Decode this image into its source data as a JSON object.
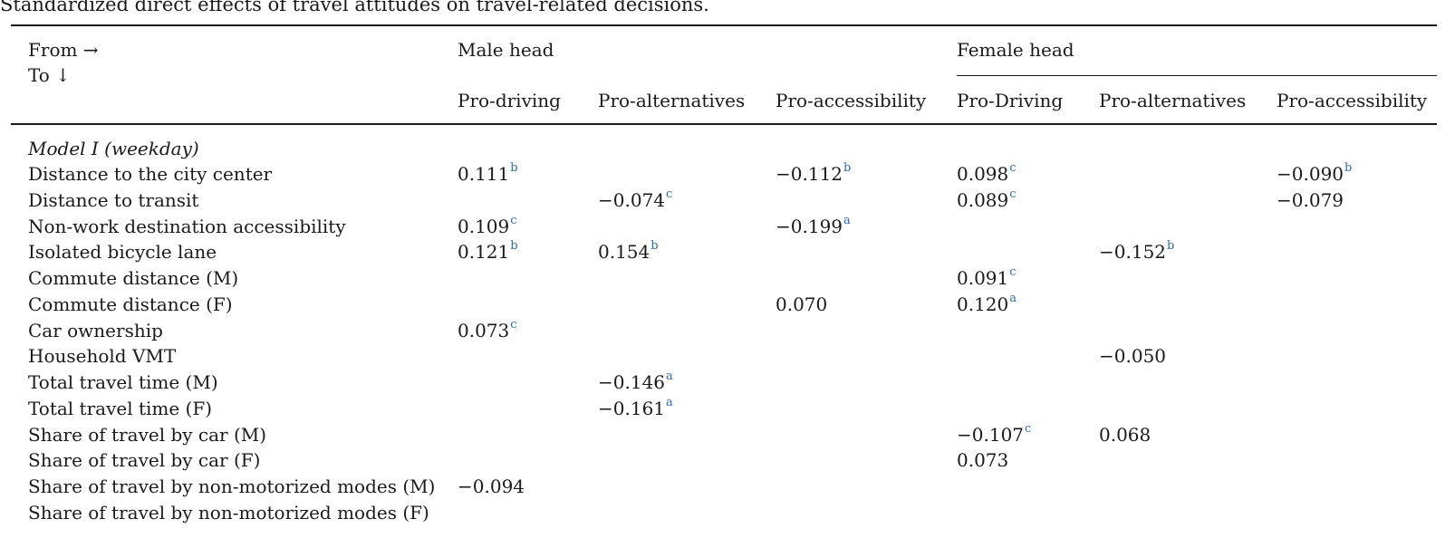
{
  "caption": "Standardized direct effects of travel attitudes on travel-related decisions.",
  "header": {
    "from": "From →",
    "to": "To ↓",
    "group_male": "Male head",
    "group_female": "Female head",
    "columns": [
      "Pro-driving",
      "Pro-alternatives",
      "Pro-accessibility",
      "Pro-Driving",
      "Pro-alternatives",
      "Pro-accessibility"
    ]
  },
  "section": "Model I (weekday)",
  "rows": [
    {
      "label": "Distance to the city center",
      "cells": [
        {
          "v": "0.111",
          "s": "b"
        },
        {
          "v": "",
          "s": ""
        },
        {
          "v": "−0.112",
          "s": "b"
        },
        {
          "v": "0.098",
          "s": "c"
        },
        {
          "v": "",
          "s": ""
        },
        {
          "v": "−0.090",
          "s": "b"
        }
      ]
    },
    {
      "label": "Distance to transit",
      "cells": [
        {
          "v": "",
          "s": ""
        },
        {
          "v": "−0.074",
          "s": "c"
        },
        {
          "v": "",
          "s": ""
        },
        {
          "v": "0.089",
          "s": "c"
        },
        {
          "v": "",
          "s": ""
        },
        {
          "v": "−0.079",
          "s": ""
        }
      ]
    },
    {
      "label": "Non-work destination accessibility",
      "cells": [
        {
          "v": "0.109",
          "s": "c"
        },
        {
          "v": "",
          "s": ""
        },
        {
          "v": "−0.199",
          "s": "a"
        },
        {
          "v": "",
          "s": ""
        },
        {
          "v": "",
          "s": ""
        },
        {
          "v": "",
          "s": ""
        }
      ]
    },
    {
      "label": "Isolated bicycle lane",
      "cells": [
        {
          "v": "0.121",
          "s": "b"
        },
        {
          "v": "0.154",
          "s": "b"
        },
        {
          "v": "",
          "s": ""
        },
        {
          "v": "",
          "s": ""
        },
        {
          "v": "−0.152",
          "s": "b"
        },
        {
          "v": "",
          "s": ""
        }
      ]
    },
    {
      "label": "Commute distance (M)",
      "cells": [
        {
          "v": "",
          "s": ""
        },
        {
          "v": "",
          "s": ""
        },
        {
          "v": "",
          "s": ""
        },
        {
          "v": "0.091",
          "s": "c"
        },
        {
          "v": "",
          "s": ""
        },
        {
          "v": "",
          "s": ""
        }
      ]
    },
    {
      "label": "Commute distance (F)",
      "cells": [
        {
          "v": "",
          "s": ""
        },
        {
          "v": "",
          "s": ""
        },
        {
          "v": "0.070",
          "s": ""
        },
        {
          "v": "0.120",
          "s": "a"
        },
        {
          "v": "",
          "s": ""
        },
        {
          "v": "",
          "s": ""
        }
      ]
    },
    {
      "label": "Car ownership",
      "cells": [
        {
          "v": "0.073",
          "s": "c"
        },
        {
          "v": "",
          "s": ""
        },
        {
          "v": "",
          "s": ""
        },
        {
          "v": "",
          "s": ""
        },
        {
          "v": "",
          "s": ""
        },
        {
          "v": "",
          "s": ""
        }
      ]
    },
    {
      "label": "Household VMT",
      "cells": [
        {
          "v": "",
          "s": ""
        },
        {
          "v": "",
          "s": ""
        },
        {
          "v": "",
          "s": ""
        },
        {
          "v": "",
          "s": ""
        },
        {
          "v": "−0.050",
          "s": ""
        },
        {
          "v": "",
          "s": ""
        }
      ]
    },
    {
      "label": "Total travel time (M)",
      "cells": [
        {
          "v": "",
          "s": ""
        },
        {
          "v": "−0.146",
          "s": "a"
        },
        {
          "v": "",
          "s": ""
        },
        {
          "v": "",
          "s": ""
        },
        {
          "v": "",
          "s": ""
        },
        {
          "v": "",
          "s": ""
        }
      ]
    },
    {
      "label": "Total travel time (F)",
      "cells": [
        {
          "v": "",
          "s": ""
        },
        {
          "v": "−0.161",
          "s": "a"
        },
        {
          "v": "",
          "s": ""
        },
        {
          "v": "",
          "s": ""
        },
        {
          "v": "",
          "s": ""
        },
        {
          "v": "",
          "s": ""
        }
      ]
    },
    {
      "label": "Share of travel by car (M)",
      "cells": [
        {
          "v": "",
          "s": ""
        },
        {
          "v": "",
          "s": ""
        },
        {
          "v": "",
          "s": ""
        },
        {
          "v": "−0.107",
          "s": "c"
        },
        {
          "v": "0.068",
          "s": ""
        },
        {
          "v": "",
          "s": ""
        }
      ]
    },
    {
      "label": "Share of travel by car (F)",
      "cells": [
        {
          "v": "",
          "s": ""
        },
        {
          "v": "",
          "s": ""
        },
        {
          "v": "",
          "s": ""
        },
        {
          "v": "0.073",
          "s": ""
        },
        {
          "v": "",
          "s": ""
        },
        {
          "v": "",
          "s": ""
        }
      ]
    },
    {
      "label": "Share of travel by non-motorized modes (M)",
      "cells": [
        {
          "v": "−0.094",
          "s": ""
        },
        {
          "v": "",
          "s": ""
        },
        {
          "v": "",
          "s": ""
        },
        {
          "v": "",
          "s": ""
        },
        {
          "v": "",
          "s": ""
        },
        {
          "v": "",
          "s": ""
        }
      ]
    },
    {
      "label": "Share of travel by non-motorized modes (F)",
      "cells": [
        {
          "v": "",
          "s": ""
        },
        {
          "v": "",
          "s": ""
        },
        {
          "v": "",
          "s": ""
        },
        {
          "v": "",
          "s": ""
        },
        {
          "v": "",
          "s": ""
        },
        {
          "v": "",
          "s": ""
        }
      ]
    }
  ]
}
